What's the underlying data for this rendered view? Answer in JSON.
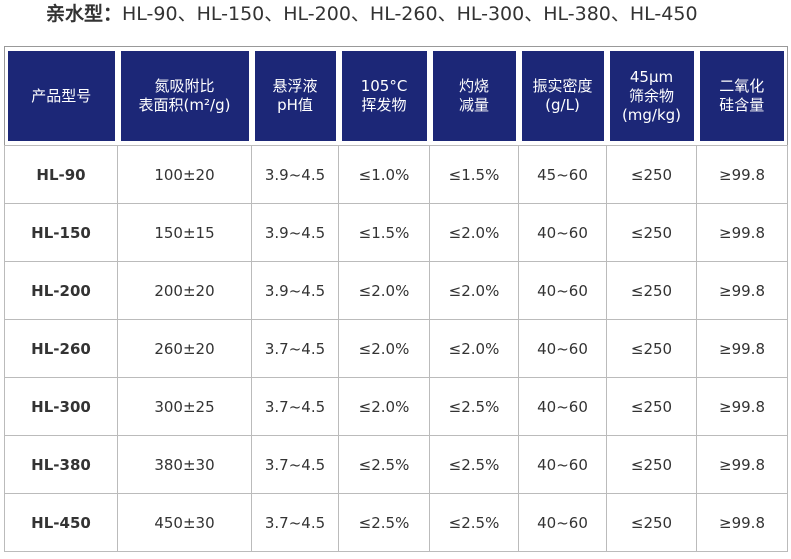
{
  "title": {
    "label": "亲水型：",
    "models": "HL-90、HL-150、HL-200、HL-260、HL-300、HL-380、HL-450"
  },
  "table": {
    "headers": [
      [
        "产品型号"
      ],
      [
        "氮吸附比",
        "表面积(m²/g)"
      ],
      [
        "悬浮液",
        "pH值"
      ],
      [
        "105°C",
        "挥发物"
      ],
      [
        "灼烧",
        "减量"
      ],
      [
        "振实密度",
        "(g/L)"
      ],
      [
        "45μm",
        "筛余物",
        "(mg/kg)"
      ],
      [
        "二氧化",
        "硅含量"
      ]
    ],
    "rows": [
      [
        "HL-90",
        "100±20",
        "3.9~4.5",
        "≤1.0%",
        "≤1.5%",
        "45~60",
        "≤250",
        "≥99.8"
      ],
      [
        "HL-150",
        "150±15",
        "3.9~4.5",
        "≤1.5%",
        "≤2.0%",
        "40~60",
        "≤250",
        "≥99.8"
      ],
      [
        "HL-200",
        "200±20",
        "3.9~4.5",
        "≤2.0%",
        "≤2.0%",
        "40~60",
        "≤250",
        "≥99.8"
      ],
      [
        "HL-260",
        "260±20",
        "3.7~4.5",
        "≤2.0%",
        "≤2.0%",
        "40~60",
        "≤250",
        "≥99.8"
      ],
      [
        "HL-300",
        "300±25",
        "3.7~4.5",
        "≤2.0%",
        "≤2.5%",
        "40~60",
        "≤250",
        "≥99.8"
      ],
      [
        "HL-380",
        "380±30",
        "3.7~4.5",
        "≤2.5%",
        "≤2.5%",
        "40~60",
        "≤250",
        "≥99.8"
      ],
      [
        "HL-450",
        "450±30",
        "3.7~4.5",
        "≤2.5%",
        "≤2.5%",
        "40~60",
        "≤250",
        "≥99.8"
      ]
    ]
  }
}
